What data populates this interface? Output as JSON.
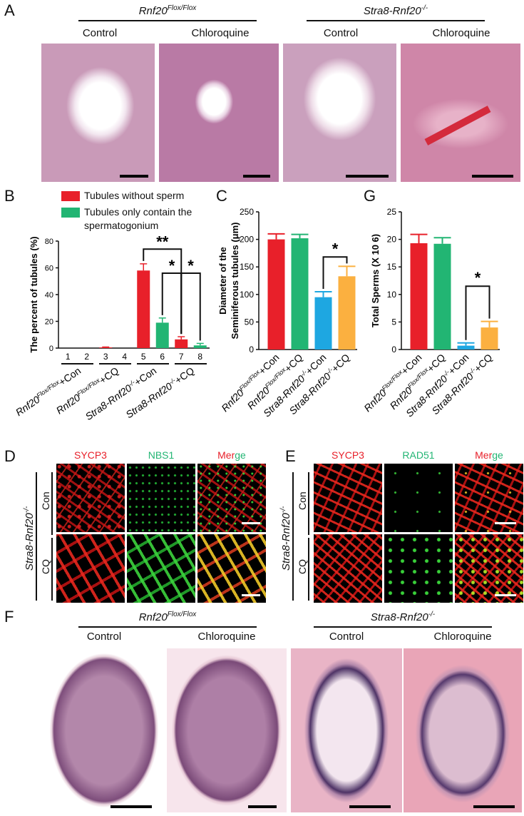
{
  "panel_letters": {
    "A": "A",
    "B": "B",
    "C": "C",
    "G": "G",
    "D": "D",
    "E": "E",
    "F": "F"
  },
  "panel_a": {
    "genotype_left": "Rnf20Flox/Flox",
    "genotype_right": "Stra8-Rnf20-/-",
    "conditions": [
      "Control",
      "Chloroquine",
      "Control",
      "Chloroquine"
    ]
  },
  "panel_f": {
    "genotype_left": "Rnf20Flox/Flox",
    "genotype_right": "Stra8-Rnf20-/-",
    "conditions": [
      "Control",
      "Chloroquine",
      "Control",
      "Chloroquine"
    ]
  },
  "legend_b": {
    "items": [
      {
        "label": "Tubules without sperm",
        "color": "#e8202a"
      },
      {
        "label": "Tubules only contain the",
        "color": "#22b573"
      }
    ],
    "second_line": "spermatogonium"
  },
  "chart_data": [
    {
      "panel": "B",
      "type": "bar",
      "ylabel": "The percent of tubules (%)",
      "ylim": [
        0,
        80
      ],
      "yticks": [
        0,
        20,
        40,
        60,
        80
      ],
      "bar_numbers": [
        "1",
        "2",
        "3",
        "4",
        "5",
        "6",
        "7",
        "8"
      ],
      "groups": [
        "Rnf20Flox/Flox+Con",
        "Rnf20Flox/Flox+CQ",
        "Stra8-Rnf20-/-+Con",
        "Stra8-Rnf20-/-+CQ"
      ],
      "series": [
        {
          "name": "Tubules without sperm",
          "values": [
            0,
            0.5,
            58,
            6.5
          ],
          "errors": [
            0,
            0.3,
            5,
            2
          ],
          "color": "#e8202a"
        },
        {
          "name": "Tubules only contain the spermatogonium",
          "values": [
            0,
            0,
            19,
            2
          ],
          "errors": [
            0,
            0,
            3.5,
            1.5
          ],
          "color": "#22b573"
        }
      ],
      "significance": [
        "**",
        "*",
        "*"
      ]
    },
    {
      "panel": "C",
      "type": "bar",
      "ylabel_lines": [
        "Diameter of the",
        "Seminiferous tubules (μm)"
      ],
      "ylim": [
        0,
        250
      ],
      "yticks": [
        0,
        50,
        100,
        150,
        200,
        250
      ],
      "categories": [
        "Rnf20Flox/Flox+Con",
        "Rnf20Flox/Flox+CQ",
        "Stra8-Rnf20-/-+Con",
        "Stra8-Rnf20-/-+CQ"
      ],
      "values": [
        200,
        202,
        95,
        133
      ],
      "errors": [
        10,
        7,
        10,
        18
      ],
      "colors": [
        "#e8202a",
        "#22b573",
        "#1ea7e1",
        "#fbb040"
      ],
      "significance": [
        "*"
      ]
    },
    {
      "panel": "G",
      "type": "bar",
      "ylabel": "Total Sperms (X 10 6)",
      "ylim": [
        0,
        25
      ],
      "yticks": [
        0,
        5,
        10,
        15,
        20,
        25
      ],
      "categories": [
        "Rnf20Flox/Flox+Con",
        "Rnf20Flox/Flox+CQ",
        "Stra8-Rnf20-/-+Con",
        "Stra8-Rnf20-/-+CQ"
      ],
      "values": [
        19.3,
        19.2,
        0.7,
        4.0
      ],
      "errors": [
        1.6,
        1.1,
        0.5,
        1.1
      ],
      "colors": [
        "#e8202a",
        "#22b573",
        "#1ea7e1",
        "#fbb040"
      ],
      "significance": [
        "*"
      ]
    }
  ],
  "panel_d": {
    "channels": [
      {
        "label": "SYCP3",
        "color": "#e8202a"
      },
      {
        "label": "NBS1",
        "color": "#22b573"
      }
    ],
    "merge_parts": [
      {
        "text": "Mer",
        "color": "#e8202a"
      },
      {
        "text": "ge",
        "color": "#22b573"
      }
    ],
    "genotype": "Stra8-Rnf20-/-",
    "rows": [
      "Con",
      "CQ"
    ]
  },
  "panel_e": {
    "channels": [
      {
        "label": "SYCP3",
        "color": "#e8202a"
      },
      {
        "label": "RAD51",
        "color": "#22b573"
      }
    ],
    "merge_parts": [
      {
        "text": "Mer",
        "color": "#e8202a"
      },
      {
        "text": "ge",
        "color": "#22b573"
      }
    ],
    "genotype": "Stra8-Rnf20-/-",
    "rows": [
      "Con",
      "CQ"
    ]
  }
}
